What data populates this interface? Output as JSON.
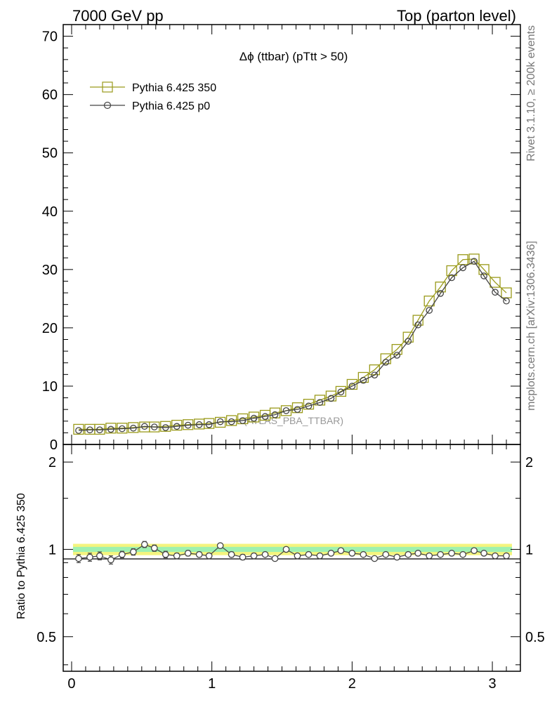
{
  "header": {
    "left": "7000 GeV pp",
    "right": "Top (parton level)"
  },
  "side_labels": {
    "rivet": "Rivet 3.1.10, ≥ 200k events",
    "source": "mcplots.cern.ch [arXiv:1306.3436]"
  },
  "chart_data": {
    "type": "line",
    "title": "Δϕ (ttbar) (pTtt > 50)",
    "watermark": "(ATLAS_PBA_TTBAR)",
    "xlim": [
      -0.06,
      3.2
    ],
    "ylim": [
      0,
      72
    ],
    "ratio_ylim": [
      0.38,
      2.3
    ],
    "xticks": [
      "0",
      "1",
      "2",
      "3"
    ],
    "yticks": [
      "0",
      "10",
      "20",
      "30",
      "40",
      "50",
      "60",
      "70"
    ],
    "ratio_ylabel": "Ratio to Pythia 6.425 350",
    "ratio_yticks": [
      "0.5",
      "1",
      "2"
    ],
    "ratio_ytick_values": [
      0.5,
      1,
      2
    ],
    "x": [
      0.05,
      0.13,
      0.2,
      0.28,
      0.36,
      0.44,
      0.52,
      0.59,
      0.67,
      0.75,
      0.83,
      0.91,
      0.98,
      1.06,
      1.14,
      1.22,
      1.3,
      1.38,
      1.45,
      1.53,
      1.61,
      1.69,
      1.77,
      1.85,
      1.92,
      2.0,
      2.08,
      2.16,
      2.24,
      2.32,
      2.4,
      2.47,
      2.55,
      2.63,
      2.71,
      2.79,
      2.87,
      2.94,
      3.02,
      3.1
    ],
    "series": [
      {
        "name": "Pythia 6.425 350",
        "color": "#9a9a1a",
        "marker": "square",
        "values": [
          2.6,
          2.6,
          2.6,
          2.8,
          2.8,
          2.9,
          3.0,
          3.0,
          3.1,
          3.3,
          3.4,
          3.5,
          3.6,
          3.8,
          4.1,
          4.4,
          4.7,
          5.0,
          5.4,
          5.8,
          6.3,
          6.9,
          7.6,
          8.3,
          9.1,
          10.3,
          11.5,
          12.8,
          14.7,
          16.3,
          18.4,
          21.3,
          24.6,
          27.0,
          29.8,
          31.7,
          31.8,
          30.0,
          27.8,
          26.0
        ]
      },
      {
        "name": "Pythia 6.425 p0",
        "color": "#444444",
        "marker": "circle",
        "values": [
          2.4,
          2.5,
          2.5,
          2.6,
          2.7,
          2.8,
          3.1,
          3.0,
          2.9,
          3.1,
          3.3,
          3.4,
          3.4,
          3.9,
          3.9,
          4.1,
          4.5,
          4.8,
          5.1,
          5.8,
          6.0,
          6.6,
          7.2,
          7.9,
          9.0,
          10.0,
          11.0,
          11.9,
          14.1,
          15.3,
          17.7,
          20.5,
          23.0,
          25.9,
          28.6,
          30.3,
          31.4,
          28.9,
          26.1,
          24.6
        ]
      }
    ],
    "ratio": {
      "values": [
        0.93,
        0.94,
        0.95,
        0.92,
        0.96,
        0.98,
        1.04,
        1.01,
        0.96,
        0.95,
        0.97,
        0.96,
        0.95,
        1.03,
        0.96,
        0.94,
        0.95,
        0.96,
        0.93,
        1.0,
        0.95,
        0.96,
        0.95,
        0.97,
        0.99,
        0.97,
        0.96,
        0.93,
        0.96,
        0.94,
        0.96,
        0.97,
        0.95,
        0.96,
        0.97,
        0.96,
        0.99,
        0.97,
        0.95,
        0.95
      ],
      "errors": [
        0.03,
        0.03,
        0.03,
        0.03,
        0.025,
        0.025,
        0.025,
        0.025,
        0.025,
        0.02,
        0.02,
        0.02,
        0.02,
        0.02,
        0.02,
        0.02,
        0.02,
        0.015,
        0.015,
        0.015,
        0.015,
        0.015,
        0.012,
        0.012,
        0.01,
        0.01,
        0.01,
        0.01,
        0.01,
        0.008,
        0.008,
        0.008,
        0.008,
        0.008,
        0.007,
        0.007,
        0.007,
        0.008,
        0.008,
        0.008
      ],
      "band_outer_color": "#f4f47e",
      "band_inner_color": "#8ef0b8"
    }
  }
}
